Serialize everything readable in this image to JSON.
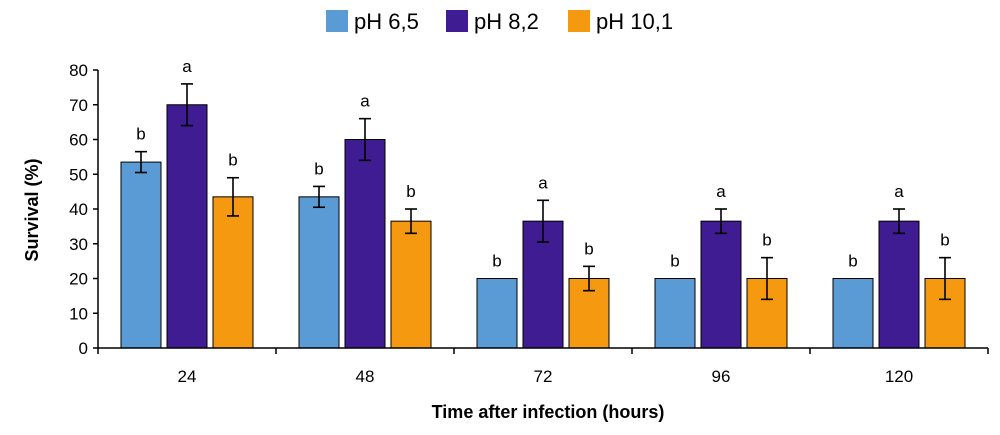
{
  "chart_data": {
    "type": "bar",
    "categories": [
      "24",
      "48",
      "72",
      "96",
      "120"
    ],
    "series": [
      {
        "name": "pH 6,5",
        "color": "#5b9bd5",
        "values": [
          53.5,
          43.5,
          20,
          20,
          20
        ],
        "errors": [
          3,
          3,
          null,
          null,
          null
        ],
        "labels": [
          "b",
          "b",
          "b",
          "b",
          "b"
        ]
      },
      {
        "name": "pH 8,2",
        "color": "#3f1c92",
        "values": [
          70,
          60,
          36.5,
          36.5,
          36.5
        ],
        "errors": [
          6,
          6,
          6,
          3.5,
          3.5
        ],
        "labels": [
          "a",
          "a",
          "a",
          "a",
          "a"
        ]
      },
      {
        "name": "pH 10,1",
        "color": "#f59a10",
        "values": [
          43.5,
          36.5,
          20,
          20,
          20
        ],
        "errors": [
          5.5,
          3.5,
          3.5,
          6,
          6
        ],
        "labels": [
          "b",
          "b",
          "b",
          "b",
          "b"
        ]
      }
    ],
    "xlabel": "Time after infection (hours)",
    "ylabel": "Survival (%)",
    "ylim": [
      0,
      80
    ],
    "yticks": [
      "0",
      "10",
      "20",
      "30",
      "40",
      "50",
      "60",
      "70",
      "80"
    ],
    "legend_position": "top-center"
  }
}
